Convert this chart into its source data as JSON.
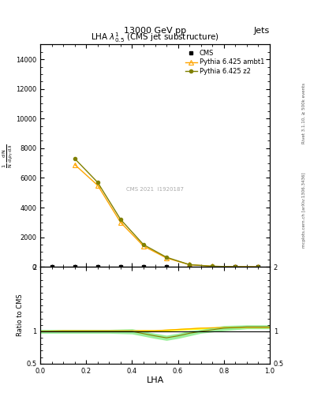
{
  "title_top": "13000 GeV pp",
  "title_right": "Jets",
  "plot_title": "LHA $\\lambda^{1}_{0.5}$ (CMS jet substructure)",
  "watermark": "CMS 2021  I1920187",
  "rivet_text": "Rivet 3.1.10, ≥ 500k events",
  "mcplots_text": "mcplots.cern.ch [arXiv:1306.3436]",
  "xlabel": "LHA",
  "ylabel": "1 / mathrm{d} N  mathrm{d} p_{T} mathrm{d} lambda",
  "ratio_ylabel": "Ratio to CMS",
  "xlim": [
    0,
    1
  ],
  "ylim_main": [
    0,
    15000
  ],
  "ylim_ratio": [
    0.5,
    2.0
  ],
  "yticks_main": [
    0,
    2000,
    4000,
    6000,
    8000,
    10000,
    12000,
    14000
  ],
  "ytick_labels_main": [
    "0",
    "2000",
    "4000",
    "6000",
    "8000",
    "10000",
    "12000",
    "14000"
  ],
  "yticks_ratio": [
    0.5,
    1.0,
    2.0
  ],
  "ytick_labels_ratio": [
    "0.5",
    "1",
    "2"
  ],
  "cms_x": [
    0.05,
    0.15,
    0.25,
    0.35,
    0.45,
    0.55,
    0.65,
    0.75,
    0.85,
    0.95
  ],
  "cms_y": [
    0,
    0,
    0,
    0,
    0,
    0,
    0,
    0,
    0,
    0
  ],
  "pythia_ambt1_x": [
    0.15,
    0.25,
    0.35,
    0.45,
    0.55,
    0.65,
    0.75,
    0.85,
    0.95
  ],
  "pythia_ambt1_y": [
    6900,
    5500,
    3000,
    1400,
    600,
    150,
    40,
    8,
    3
  ],
  "pythia_z2_x": [
    0.15,
    0.25,
    0.35,
    0.45,
    0.55,
    0.65,
    0.75,
    0.85,
    0.95
  ],
  "pythia_z2_y": [
    7300,
    5700,
    3200,
    1500,
    650,
    150,
    42,
    9,
    3
  ],
  "color_ambt1": "#FFA500",
  "color_z2": "#808000",
  "color_cms": "#000000",
  "ratio_ambt1_x": [
    0.0,
    0.1,
    0.2,
    0.3,
    0.4,
    0.5,
    0.6,
    0.7,
    0.8,
    0.9,
    1.0
  ],
  "ratio_ambt1_y": [
    1.0,
    1.01,
    1.01,
    1.01,
    1.01,
    1.01,
    1.03,
    1.05,
    1.06,
    1.06,
    1.06
  ],
  "ratio_ambt1_ylo": [
    0.985,
    0.995,
    0.995,
    0.995,
    0.995,
    0.995,
    1.015,
    1.035,
    1.045,
    1.045,
    1.045
  ],
  "ratio_ambt1_yhi": [
    1.015,
    1.025,
    1.025,
    1.025,
    1.025,
    1.025,
    1.045,
    1.065,
    1.075,
    1.075,
    1.075
  ],
  "ratio_z2_x": [
    0.0,
    0.1,
    0.2,
    0.3,
    0.4,
    0.5,
    0.55,
    0.6,
    0.65,
    0.7,
    0.8,
    0.9,
    1.0
  ],
  "ratio_z2_y": [
    1.0,
    1.0,
    1.0,
    1.0,
    1.0,
    0.93,
    0.9,
    0.93,
    0.97,
    1.0,
    1.05,
    1.07,
    1.07
  ],
  "ratio_z2_ylo": [
    0.97,
    0.97,
    0.97,
    0.97,
    0.96,
    0.89,
    0.86,
    0.89,
    0.93,
    0.97,
    1.01,
    1.04,
    1.04
  ],
  "ratio_z2_yhi": [
    1.03,
    1.03,
    1.03,
    1.03,
    1.04,
    0.97,
    0.94,
    0.97,
    1.01,
    1.03,
    1.09,
    1.1,
    1.1
  ],
  "bg_color": "#ffffff"
}
